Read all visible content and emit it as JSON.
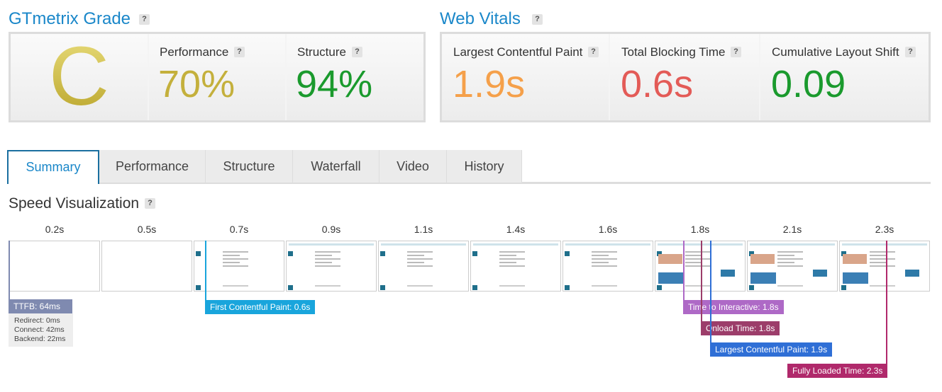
{
  "help_icon": "?",
  "grade": {
    "title": "GTmetrix Grade",
    "letter": "C",
    "metrics": [
      {
        "label": "Performance",
        "value": "70%"
      },
      {
        "label": "Structure",
        "value": "94%"
      }
    ]
  },
  "vitals": {
    "title": "Web Vitals",
    "metrics": [
      {
        "label": "Largest Contentful Paint",
        "value": "1.9s"
      },
      {
        "label": "Total Blocking Time",
        "value": "0.6s"
      },
      {
        "label": "Cumulative Layout Shift",
        "value": "0.09"
      }
    ]
  },
  "tabs": [
    "Summary",
    "Performance",
    "Structure",
    "Waterfall",
    "Video",
    "History"
  ],
  "speed": {
    "title": "Speed Visualization",
    "frames": [
      "0.2s",
      "0.5s",
      "0.7s",
      "0.9s",
      "1.1s",
      "1.4s",
      "1.6s",
      "1.8s",
      "2.1s",
      "2.3s"
    ],
    "ttfb": {
      "label": "TTFB: 64ms",
      "details": [
        "Redirect: 0ms",
        "Connect: 42ms",
        "Backend: 22ms"
      ]
    },
    "markers": [
      "First Contentful Paint: 0.6s",
      "Time to Interactive: 1.8s",
      "Onload Time: 1.8s",
      "Largest Contentful Paint: 1.9s",
      "Fully Loaded Time: 2.3s"
    ]
  }
}
